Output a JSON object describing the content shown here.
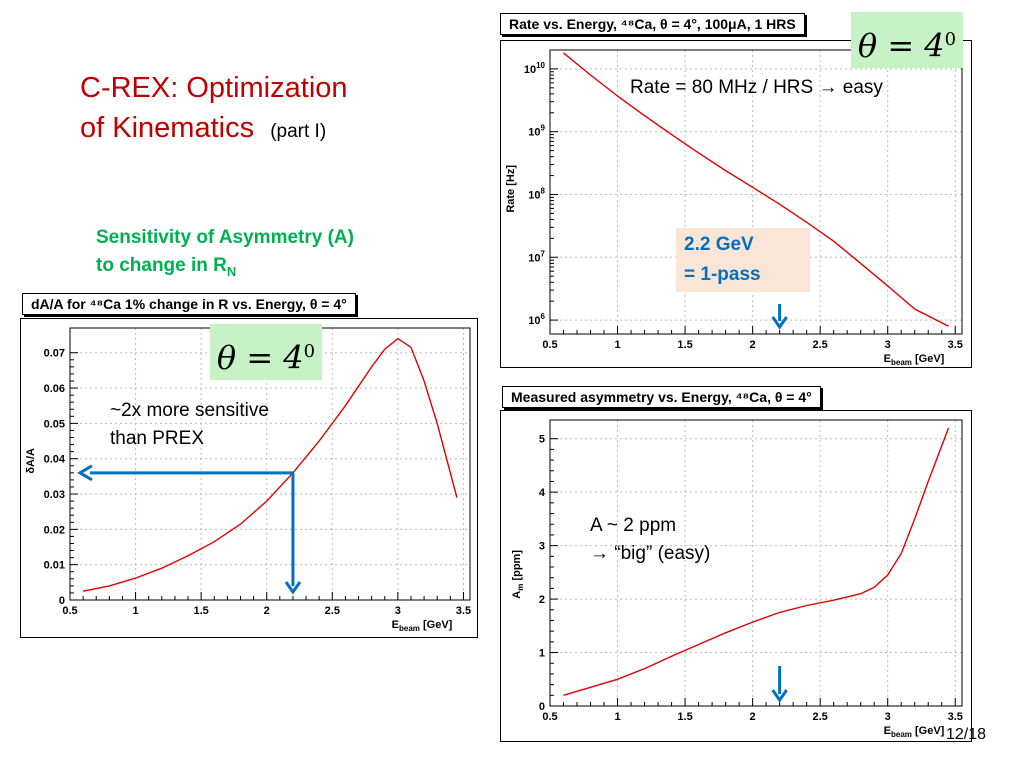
{
  "slide": {
    "title_line1": "C-REX:   Optimization",
    "title_line2": "of   Kinematics",
    "title_part": "(part I)",
    "sensitivity_line1": "Sensitivity  of  Asymmetry  (A)",
    "sensitivity_line2": "to  change in R",
    "sensitivity_sub": "N",
    "page_number": "12/18"
  },
  "badges": {
    "theta_text": "θ = 4",
    "theta_sup": "0"
  },
  "annotations": {
    "rate_note": "Rate = 80 MHz / HRS → easy",
    "callout_line1": "2.2  GeV",
    "callout_line2": "=  1-pass",
    "sens_note_line1": "~2x  more  sensitive",
    "sens_note_line2": "than PREX",
    "asym_note_line1": "A  ~  2 ppm",
    "asym_note_line2": "→  “big” (easy)"
  },
  "colors": {
    "curve": "#e00000",
    "arrow": "#0070c0",
    "title": "#c00000",
    "green": "#00b050",
    "badge": "#c6f2c6"
  },
  "chart_data": [
    {
      "id": "rate",
      "type": "line",
      "title": "Rate vs. Energy,  ⁴⁸Ca, θ = 4°, 100μA, 1 HRS",
      "xlabel": "E_beam [GeV]",
      "ylabel": "Rate [Hz]",
      "yscale": "log",
      "xlim": [
        0.5,
        3.55
      ],
      "ylim": [
        600000,
        20000000000
      ],
      "xticks": [
        "0.5",
        "1",
        "1.5",
        "2",
        "2.5",
        "3",
        "3.5"
      ],
      "yticks": [
        "10^6",
        "10^7",
        "10^8",
        "10^9",
        "10^10"
      ],
      "x": [
        0.6,
        0.8,
        1.0,
        1.2,
        1.4,
        1.6,
        1.8,
        2.0,
        2.2,
        2.4,
        2.6,
        2.8,
        3.0,
        3.2,
        3.45
      ],
      "y": [
        18000000000,
        8000000000,
        3700000000,
        1800000000,
        900000000,
        460000000,
        240000000,
        130000000,
        70000000,
        36000000,
        18000000,
        8000000,
        3500000,
        1500000,
        800000
      ]
    },
    {
      "id": "sensitivity",
      "type": "line",
      "title": "dA/A for  ⁴⁸Ca 1% change in R vs. Energy, θ = 4°",
      "xlabel": "E_beam [GeV]",
      "ylabel": "δA/A",
      "xlim": [
        0.5,
        3.55
      ],
      "ylim": [
        0,
        0.077
      ],
      "xticks": [
        "0.5",
        "1",
        "1.5",
        "2",
        "2.5",
        "3",
        "3.5"
      ],
      "yticks": [
        "0",
        "0.01",
        "0.02",
        "0.03",
        "0.04",
        "0.05",
        "0.06",
        "0.07"
      ],
      "x": [
        0.6,
        0.8,
        1.0,
        1.2,
        1.4,
        1.6,
        1.8,
        2.0,
        2.2,
        2.4,
        2.6,
        2.8,
        2.9,
        3.0,
        3.1,
        3.2,
        3.3,
        3.45
      ],
      "y": [
        0.0025,
        0.004,
        0.0062,
        0.009,
        0.0125,
        0.0165,
        0.0215,
        0.028,
        0.036,
        0.045,
        0.055,
        0.066,
        0.071,
        0.074,
        0.0715,
        0.062,
        0.05,
        0.029
      ]
    },
    {
      "id": "asymmetry",
      "type": "line",
      "title": "Measured asymmetry vs. Energy,  ⁴⁸Ca, θ = 4°",
      "xlabel": "E_beam [GeV]",
      "ylabel": "A_m [ppm]",
      "xlim": [
        0.5,
        3.55
      ],
      "ylim": [
        0,
        5.35
      ],
      "xticks": [
        "0.5",
        "1",
        "1.5",
        "2",
        "2.5",
        "3",
        "3.5"
      ],
      "yticks": [
        "0",
        "1",
        "2",
        "3",
        "4",
        "5"
      ],
      "x": [
        0.6,
        0.8,
        1.0,
        1.2,
        1.4,
        1.6,
        1.8,
        2.0,
        2.2,
        2.4,
        2.6,
        2.8,
        2.9,
        3.0,
        3.1,
        3.2,
        3.3,
        3.45
      ],
      "y": [
        0.2,
        0.35,
        0.5,
        0.7,
        0.93,
        1.15,
        1.37,
        1.57,
        1.75,
        1.88,
        1.98,
        2.1,
        2.22,
        2.45,
        2.85,
        3.5,
        4.2,
        5.2
      ]
    }
  ]
}
